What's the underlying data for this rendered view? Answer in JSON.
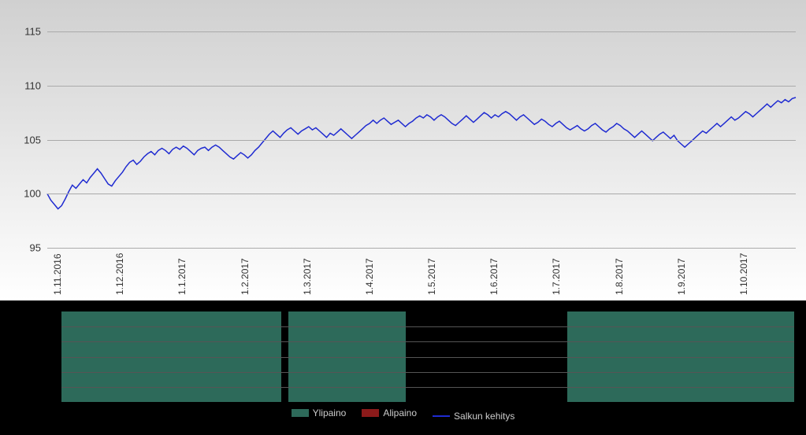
{
  "chart": {
    "type": "line",
    "background_gradient": [
      "#d0d0d0",
      "#ffffff"
    ],
    "ylim": [
      95,
      115
    ],
    "ytick_step": 5,
    "yticks": [
      95,
      100,
      105,
      110,
      115
    ],
    "grid_color": "#aaaaaa",
    "label_color": "#333333",
    "label_fontsize": 13,
    "x_label_fontsize": 12,
    "series": {
      "name": "Salkun kehitys",
      "color": "#1f2bd1",
      "line_width": 1.5,
      "values": [
        100.0,
        99.4,
        99.0,
        98.6,
        98.9,
        99.5,
        100.2,
        100.8,
        100.5,
        100.9,
        101.3,
        101.0,
        101.5,
        101.9,
        102.3,
        101.9,
        101.4,
        100.9,
        100.7,
        101.2,
        101.6,
        102.0,
        102.5,
        102.9,
        103.1,
        102.7,
        103.0,
        103.4,
        103.7,
        103.9,
        103.6,
        104.0,
        104.2,
        104.0,
        103.7,
        104.1,
        104.3,
        104.1,
        104.4,
        104.2,
        103.9,
        103.6,
        104.0,
        104.2,
        104.3,
        104.0,
        104.3,
        104.5,
        104.3,
        104.0,
        103.7,
        103.4,
        103.2,
        103.5,
        103.8,
        103.6,
        103.3,
        103.6,
        104.0,
        104.3,
        104.7,
        105.1,
        105.5,
        105.8,
        105.5,
        105.2,
        105.6,
        105.9,
        106.1,
        105.8,
        105.5,
        105.8,
        106.0,
        106.2,
        105.9,
        106.1,
        105.8,
        105.5,
        105.2,
        105.6,
        105.4,
        105.7,
        106.0,
        105.7,
        105.4,
        105.1,
        105.4,
        105.7,
        106.0,
        106.3,
        106.5,
        106.8,
        106.5,
        106.8,
        107.0,
        106.7,
        106.4,
        106.6,
        106.8,
        106.5,
        106.2,
        106.5,
        106.7,
        107.0,
        107.2,
        107.0,
        107.3,
        107.1,
        106.8,
        107.1,
        107.3,
        107.1,
        106.8,
        106.5,
        106.3,
        106.6,
        106.9,
        107.2,
        106.9,
        106.6,
        106.9,
        107.2,
        107.5,
        107.3,
        107.0,
        107.3,
        107.1,
        107.4,
        107.6,
        107.4,
        107.1,
        106.8,
        107.1,
        107.3,
        107.0,
        106.7,
        106.4,
        106.6,
        106.9,
        106.7,
        106.4,
        106.2,
        106.5,
        106.7,
        106.4,
        106.1,
        105.9,
        106.1,
        106.3,
        106.0,
        105.8,
        106.0,
        106.3,
        106.5,
        106.2,
        105.9,
        105.7,
        106.0,
        106.2,
        106.5,
        106.3,
        106.0,
        105.8,
        105.5,
        105.2,
        105.5,
        105.8,
        105.5,
        105.2,
        104.9,
        105.2,
        105.5,
        105.7,
        105.4,
        105.1,
        105.4,
        104.9,
        104.6,
        104.3,
        104.6,
        104.9,
        105.2,
        105.5,
        105.8,
        105.6,
        105.9,
        106.2,
        106.5,
        106.2,
        106.5,
        106.8,
        107.1,
        106.8,
        107.0,
        107.3,
        107.6,
        107.4,
        107.1,
        107.4,
        107.7,
        108.0,
        108.3,
        108.0,
        108.3,
        108.6,
        108.4,
        108.7,
        108.5,
        108.8,
        108.9
      ]
    },
    "x_categories": [
      "1.11.2016",
      "1.12.2016",
      "1.1.2017",
      "1.2.2017",
      "1.3.2017",
      "1.4.2017",
      "1.5.2017",
      "1.6.2017",
      "1.7.2017",
      "1.8.2017",
      "1.9.2017",
      "1.10.2017"
    ]
  },
  "weight_panel": {
    "background": "#000000",
    "row_line_color": "#555555",
    "rows": 6,
    "block_color_over": "#2d6a5a",
    "block_color_under": "#8b1a1a",
    "segments": [
      {
        "start": 0.0,
        "end": 0.3,
        "state": "over"
      },
      {
        "start": 0.31,
        "end": 0.47,
        "state": "over"
      },
      {
        "start": 0.47,
        "end": 0.69,
        "state": "none"
      },
      {
        "start": 0.69,
        "end": 1.0,
        "state": "over"
      }
    ]
  },
  "legend": {
    "items": [
      {
        "label": "Ylipaino",
        "type": "swatch",
        "color": "#2d6a5a"
      },
      {
        "label": "Alipaino",
        "type": "swatch",
        "color": "#8b1a1a"
      },
      {
        "label": "Salkun kehitys",
        "type": "line",
        "color": "#1f2bd1"
      }
    ],
    "text_color": "#cccccc",
    "fontsize": 12
  }
}
